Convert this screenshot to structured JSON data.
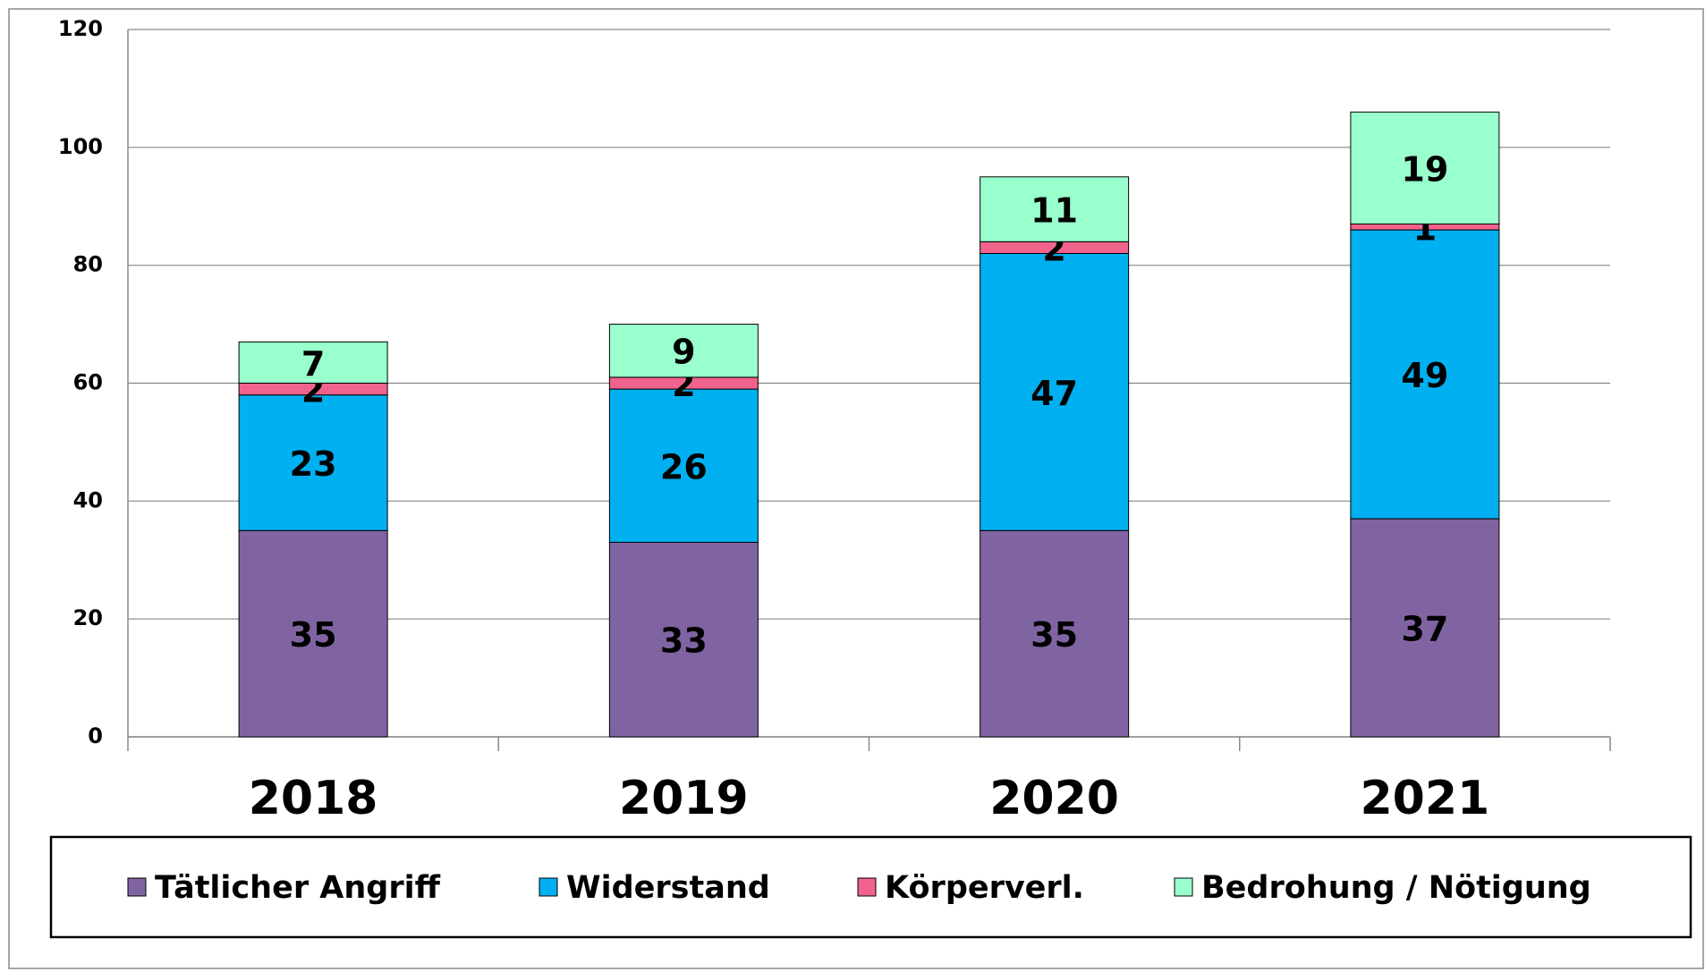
{
  "chart_data": {
    "type": "stacked_bar",
    "categories": [
      "2018",
      "2019",
      "2020",
      "2021"
    ],
    "series": [
      {
        "name": "Tätlicher Angriff",
        "color": "#8064a2",
        "values": [
          35,
          33,
          35,
          37
        ]
      },
      {
        "name": "Widerstand",
        "color": "#00b0f0",
        "values": [
          23,
          26,
          47,
          49
        ]
      },
      {
        "name": "Körperverl.",
        "color": "#f0638c",
        "values": [
          2,
          2,
          2,
          1
        ]
      },
      {
        "name": "Bedrohung / Nötigung",
        "color": "#99ffcc",
        "values": [
          7,
          9,
          11,
          19
        ]
      }
    ],
    "ylim": [
      0,
      120
    ],
    "yticks": [
      0,
      20,
      40,
      60,
      80,
      100,
      120
    ],
    "grid": true,
    "legend": "bottom"
  }
}
